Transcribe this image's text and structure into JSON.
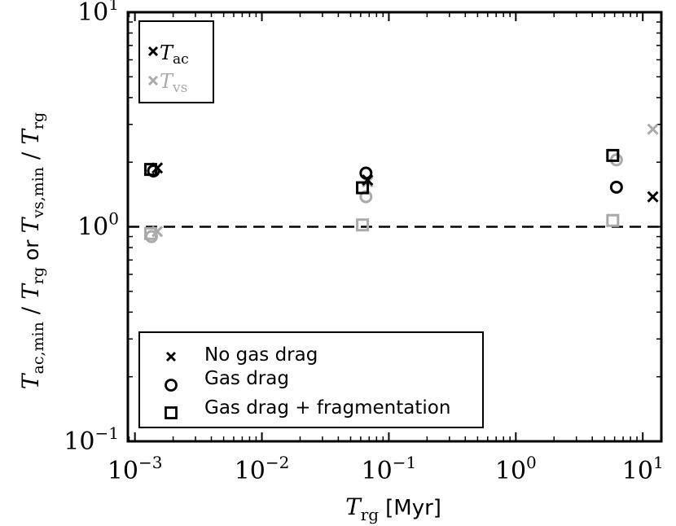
{
  "chart_data": {
    "type": "scatter",
    "xscale": "log",
    "yscale": "log",
    "xlim": [
      0.00088,
      14
    ],
    "ylim": [
      0.1,
      10
    ],
    "xticks": [
      {
        "base": "10",
        "exp": "−3"
      },
      {
        "base": "10",
        "exp": "−2"
      },
      {
        "base": "10",
        "exp": "−1"
      },
      {
        "base": "10",
        "exp": "0"
      },
      {
        "base": "10",
        "exp": "1"
      }
    ],
    "yticks": [
      {
        "base": "10",
        "exp": "−1"
      },
      {
        "base": "10",
        "exp": "0"
      },
      {
        "base": "10",
        "exp": "1"
      }
    ],
    "xlabel": {
      "symbol": "T",
      "sub": "rg",
      "unit": "[Myr]"
    },
    "ylabel": {
      "sym1": "T",
      "sub1": "ac,min",
      "mid1": " / ",
      "sym2": "T",
      "sub2": "rg",
      "or": " or ",
      "sym3": "T",
      "sub3": "vs,min",
      "mid2": " / ",
      "sym4": "T",
      "sub4": "rg"
    },
    "reference_line": {
      "y": 1,
      "style": "dashed"
    },
    "colors": {
      "ac": "#000000",
      "vs": "#aaaaaa"
    },
    "legend_color": {
      "position": "top-left",
      "entries": [
        {
          "symbol": "T",
          "sub": "ac",
          "color": "#000000"
        },
        {
          "symbol": "T",
          "sub": "vs",
          "color": "#aaaaaa"
        }
      ]
    },
    "legend_marker": {
      "position": "bottom-left",
      "entries": [
        {
          "marker": "x",
          "label": "No gas drag"
        },
        {
          "marker": "o",
          "label": "Gas drag"
        },
        {
          "marker": "s",
          "label": "Gas drag + fragmentation"
        }
      ]
    },
    "series": [
      {
        "quantity": "ac",
        "marker": "x",
        "points": [
          [
            0.0015,
            1.88
          ],
          [
            0.068,
            1.65
          ],
          [
            12,
            1.38
          ]
        ]
      },
      {
        "quantity": "ac",
        "marker": "o",
        "points": [
          [
            0.0014,
            1.82
          ],
          [
            0.066,
            1.78
          ],
          [
            6.2,
            1.53
          ]
        ]
      },
      {
        "quantity": "ac",
        "marker": "s",
        "points": [
          [
            0.00133,
            1.85
          ],
          [
            0.062,
            1.52
          ],
          [
            5.8,
            2.15
          ]
        ]
      },
      {
        "quantity": "vs",
        "marker": "x",
        "points": [
          [
            0.0015,
            0.95
          ],
          [
            0.068,
            1.62
          ],
          [
            12,
            2.85
          ]
        ]
      },
      {
        "quantity": "vs",
        "marker": "o",
        "points": [
          [
            0.00135,
            0.9
          ],
          [
            0.066,
            1.38
          ],
          [
            6.2,
            2.05
          ]
        ]
      },
      {
        "quantity": "vs",
        "marker": "s",
        "points": [
          [
            0.00133,
            0.93
          ],
          [
            0.062,
            1.02
          ],
          [
            5.8,
            1.07
          ]
        ]
      }
    ]
  }
}
